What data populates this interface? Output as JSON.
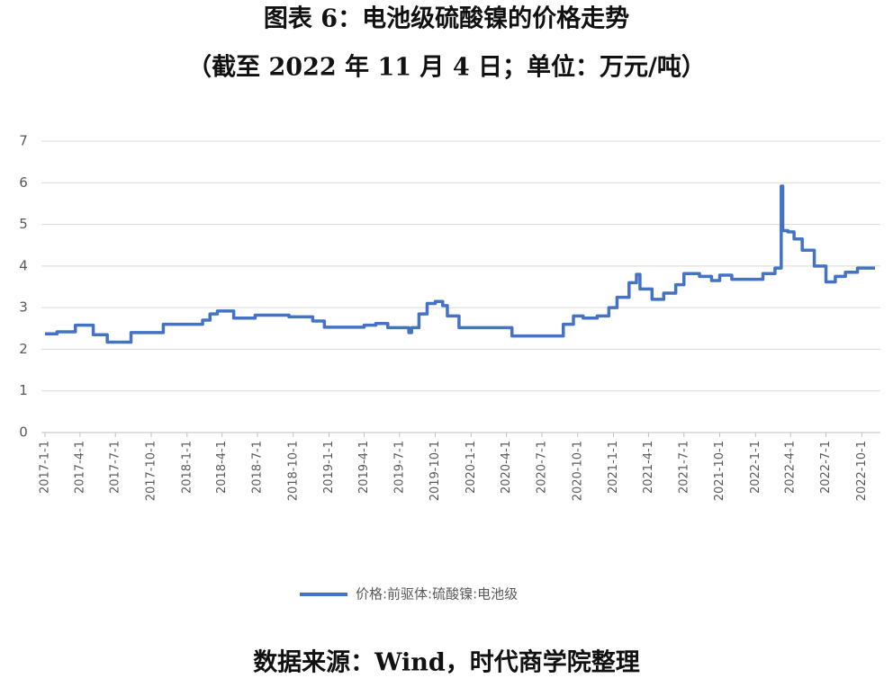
{
  "chart_data": {
    "type": "line",
    "title": "图表 6：电池级硫酸镍的价格走势",
    "subtitle": "（截至 2022 年 11 月 4 日；单位：万元/吨）",
    "source": "数据来源：Wind，时代商学院整理",
    "step": true,
    "grid": true,
    "legend": "bottom",
    "x": [
      "2017-1-1",
      "2017-2-1",
      "2017-3-20",
      "2017-5-5",
      "2017-6-10",
      "2017-8-10",
      "2017-11-1",
      "2018-2-10",
      "2018-3-1",
      "2018-3-20",
      "2018-5-1",
      "2018-6-25",
      "2018-9-20",
      "2018-11-20",
      "2018-12-20",
      "2019-4-1",
      "2019-5-1",
      "2019-6-1",
      "2019-7-25",
      "2019-8-1",
      "2019-8-20",
      "2019-9-10",
      "2019-10-1",
      "2019-10-20",
      "2019-11-1",
      "2019-12-1",
      "2020-4-15",
      "2020-8-25",
      "2020-9-20",
      "2020-10-15",
      "2020-11-20",
      "2020-12-20",
      "2021-1-10",
      "2021-2-10",
      "2021-3-1",
      "2021-3-10",
      "2021-4-10",
      "2021-5-10",
      "2021-6-10",
      "2021-7-1",
      "2021-8-10",
      "2021-9-10",
      "2021-10-1",
      "2021-11-1",
      "2022-1-20",
      "2022-2-20",
      "2022-3-8",
      "2022-3-12",
      "2022-3-25",
      "2022-4-10",
      "2022-5-1",
      "2022-6-1",
      "2022-7-1",
      "2022-7-25",
      "2022-8-20",
      "2022-9-20",
      "2022-11-4"
    ],
    "series": [
      {
        "name": "价格:前驱体:硫酸镍:电池级",
        "color": "#4472c4",
        "values": [
          2.37,
          2.42,
          2.58,
          2.35,
          2.17,
          2.4,
          2.6,
          2.7,
          2.85,
          2.92,
          2.75,
          2.82,
          2.78,
          2.68,
          2.53,
          2.58,
          2.62,
          2.52,
          2.4,
          2.52,
          2.85,
          3.1,
          3.15,
          3.05,
          2.8,
          2.52,
          2.32,
          2.6,
          2.8,
          2.75,
          2.8,
          3.0,
          3.25,
          3.6,
          3.8,
          3.45,
          3.2,
          3.35,
          3.55,
          3.82,
          3.75,
          3.65,
          3.78,
          3.68,
          3.82,
          3.95,
          5.92,
          4.85,
          4.82,
          4.65,
          4.38,
          4.0,
          3.62,
          3.75,
          3.85,
          3.95,
          3.95
        ]
      }
    ],
    "xlim": [
      "2017-1-1",
      "2022-11-4"
    ],
    "xticks": [
      "2017-1-1",
      "2017-4-1",
      "2017-7-1",
      "2017-10-1",
      "2018-1-1",
      "2018-4-1",
      "2018-7-1",
      "2018-10-1",
      "2019-1-1",
      "2019-4-1",
      "2019-7-1",
      "2019-10-1",
      "2020-1-1",
      "2020-4-1",
      "2020-7-1",
      "2020-10-1",
      "2021-1-1",
      "2021-4-1",
      "2021-7-1",
      "2021-10-1",
      "2022-1-1",
      "2022-4-1",
      "2022-7-1",
      "2022-10-1"
    ],
    "ylim": [
      0,
      7
    ],
    "yticks": [
      0,
      1,
      2,
      3,
      4,
      5,
      6,
      7
    ]
  }
}
